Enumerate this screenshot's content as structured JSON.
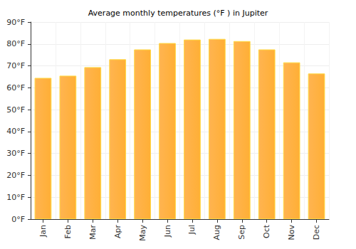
{
  "chart_data": {
    "type": "bar",
    "title": "Average monthly temperatures (°F ) in Jupiter",
    "categories": [
      "Jan",
      "Feb",
      "Mar",
      "Apr",
      "May",
      "Jun",
      "Jul",
      "Aug",
      "Sep",
      "Oct",
      "Nov",
      "Dec"
    ],
    "values": [
      64.5,
      65.5,
      69.4,
      73,
      77.5,
      80.4,
      82,
      82.3,
      81.3,
      77.5,
      71.6,
      66.5
    ],
    "color": "#ffa733",
    "ylim": [
      0,
      90
    ],
    "yticks": [
      {
        "value": 0,
        "label": "0°F"
      },
      {
        "value": 10,
        "label": "10°F"
      },
      {
        "value": 20,
        "label": "20°F"
      },
      {
        "value": 30,
        "label": "30°F"
      },
      {
        "value": 40,
        "label": "40°F"
      },
      {
        "value": 50,
        "label": "50°F"
      },
      {
        "value": 60,
        "label": "60°F"
      },
      {
        "value": 70,
        "label": "70°F"
      },
      {
        "value": 80,
        "label": "80°F"
      },
      {
        "value": 90,
        "label": "90°F"
      }
    ],
    "grid": true
  }
}
